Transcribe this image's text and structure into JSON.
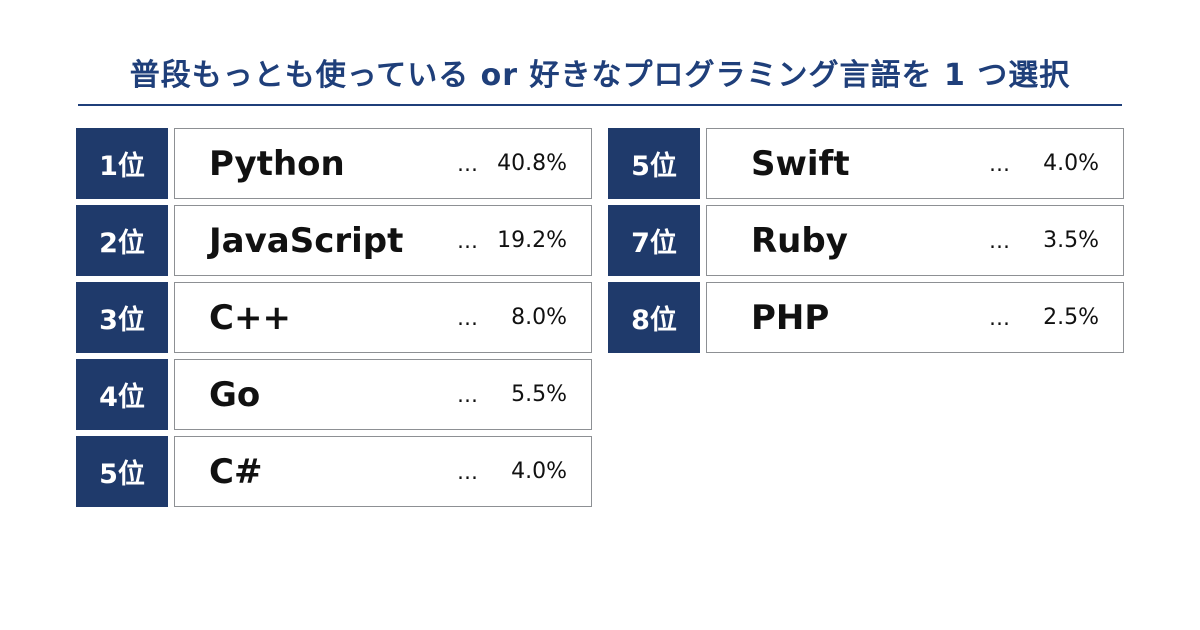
{
  "header": {
    "title": "普段もっとも使っている or 好きなプログラミング言語を 1 つ選択"
  },
  "colors": {
    "title": "#1f3f7a",
    "rank_background": "#1f3a6b",
    "rank_text": "#ffffff",
    "card_border": "#8d9094"
  },
  "chart_data": {
    "type": "table",
    "title": "普段もっとも使っている or 好きなプログラミング言語を 1 つ選択",
    "separator": "…",
    "unit": "%",
    "rows": [
      {
        "rank": 1,
        "rank_label": "1位",
        "language": "Python",
        "value": 40.8,
        "value_label": "40.8%"
      },
      {
        "rank": 2,
        "rank_label": "2位",
        "language": "JavaScript",
        "value": 19.2,
        "value_label": "19.2%"
      },
      {
        "rank": 3,
        "rank_label": "3位",
        "language": "C++",
        "value": 8.0,
        "value_label": "8.0%"
      },
      {
        "rank": 4,
        "rank_label": "4位",
        "language": "Go",
        "value": 5.5,
        "value_label": "5.5%"
      },
      {
        "rank": 5,
        "rank_label": "5位",
        "language": "C#",
        "value": 4.0,
        "value_label": "4.0%"
      },
      {
        "rank": 5,
        "rank_label": "5位",
        "language": "Swift",
        "value": 4.0,
        "value_label": "4.0%"
      },
      {
        "rank": 7,
        "rank_label": "7位",
        "language": "Ruby",
        "value": 3.5,
        "value_label": "3.5%"
      },
      {
        "rank": 8,
        "rank_label": "8位",
        "language": "PHP",
        "value": 2.5,
        "value_label": "2.5%"
      }
    ]
  }
}
